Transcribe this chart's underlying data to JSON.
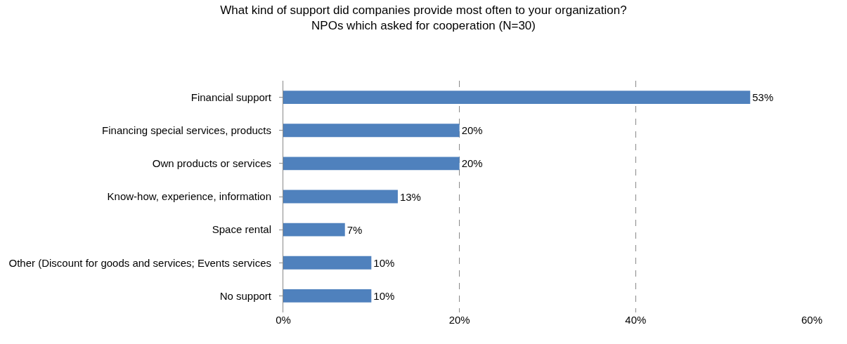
{
  "chart_data": {
    "type": "bar",
    "orientation": "horizontal",
    "title": "What kind of support did companies provide most often to your organization?\nNPOs which asked for cooperation (N=30)",
    "categories": [
      "Financial support",
      "Financing special services, products",
      "Own products or services",
      "Know-how, experience, information",
      "Space rental",
      "Other (Discount for goods and services; Events services",
      "No support"
    ],
    "values": [
      53,
      20,
      20,
      13,
      7,
      10,
      10
    ],
    "value_labels": [
      "53%",
      "20%",
      "20%",
      "13%",
      "7%",
      "10%",
      "10%"
    ],
    "color": "#4f81bd",
    "xlim": [
      0,
      60
    ],
    "xticks": [
      {
        "value": 0,
        "label": "0%"
      },
      {
        "value": 20,
        "label": "20%"
      },
      {
        "value": 40,
        "label": "40%"
      },
      {
        "value": 60,
        "label": "60%"
      }
    ],
    "grid": "x",
    "line_style": "dashed",
    "legend": false
  }
}
